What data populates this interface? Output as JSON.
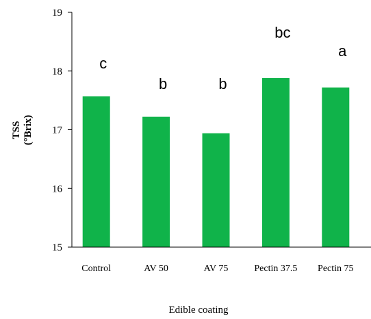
{
  "chart_data": {
    "type": "bar",
    "title": "",
    "xlabel": "Edible coating",
    "ylabel_line1": "TSS",
    "ylabel_line2": "(°Brix)",
    "categories": [
      "Control",
      "AV 50",
      "AV 75",
      "Pectin 37.5",
      "Pectin 75"
    ],
    "values": [
      17.57,
      17.22,
      16.94,
      17.88,
      17.72
    ],
    "annotations": [
      "c",
      "b",
      "b",
      "bc",
      "a"
    ],
    "ylim": [
      15,
      19
    ],
    "yticks": [
      15,
      16,
      17,
      18,
      19
    ],
    "bar_color": "#10b34a",
    "grid": false,
    "legend": "none"
  }
}
